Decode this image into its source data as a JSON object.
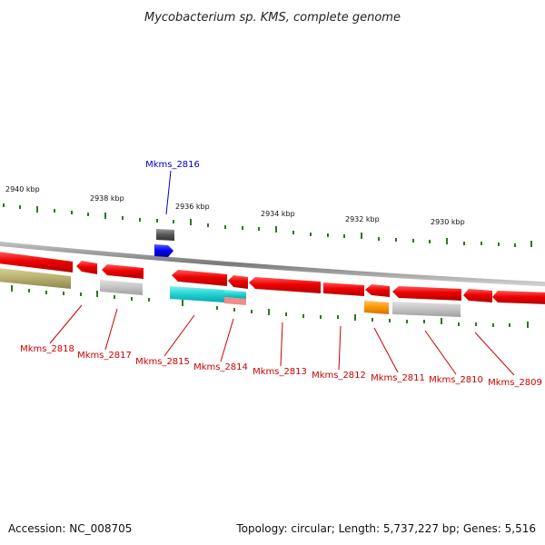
{
  "title": "Mycobacterium sp. KMS, complete genome",
  "footer": {
    "accession": "Accession: NC_008705",
    "summary": "Topology: circular; Length: 5,737,227 bp; Genes: 5,516"
  },
  "scale_labels": [
    "2940 kbp",
    "2938 kbp",
    "2936 kbp",
    "2934 kbp",
    "2932 kbp",
    "2930 kbp"
  ],
  "gene_labels": {
    "top": [
      "Mkms_2816"
    ],
    "bottom": [
      "Mkms_2818",
      "Mkms_2817",
      "Mkms_2815",
      "Mkms_2814",
      "Mkms_2813",
      "Mkms_2812",
      "Mkms_2811",
      "Mkms_2810",
      "Mkms_2809"
    ]
  },
  "colors": {
    "backbone": "#8a8a8a",
    "cds_red": "#e60000",
    "tick_green": "#2a7a1a",
    "label_red": "#cc0000",
    "label_blue": "#0000cc",
    "olive": "#b8b070",
    "grey_gene": "#c4c4c4",
    "cyan": "#20d0d0",
    "orange": "#ff9900",
    "blue": "#0000ee"
  }
}
